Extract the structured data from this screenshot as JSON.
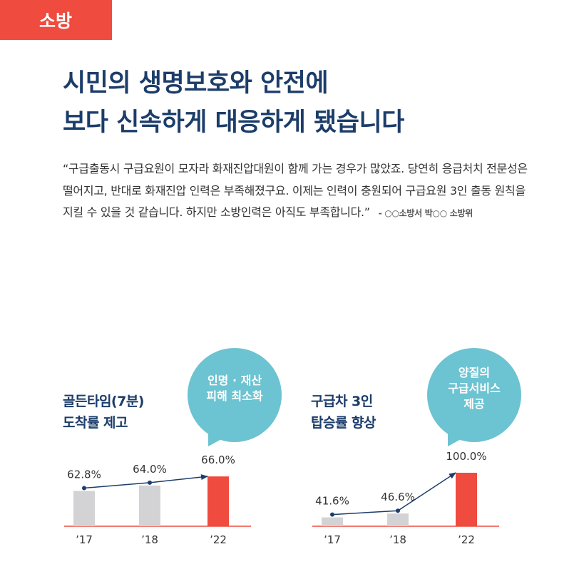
{
  "section_tag": "소방",
  "headline": {
    "line1": "시민의 생명보호와 안전에",
    "line2": "보다 신속하게 대응하게 됐습니다"
  },
  "quote": {
    "text": "“구급출동시 구급요원이 모자라 화재진압대원이 함께 가는 경우가 많았죠. 당연히 응급처치 전문성은 떨어지고, 반대로 화재진압 인력은 부족해졌구요. 이제는 인력이 충원되어 구급요원 3인 출동 원칙을 지킬 수 있을 것 같습니다. 하지만 소방인력은 아직도 부족합니다.”",
    "source": "- ○○소방서 박○○ 소방위"
  },
  "colors": {
    "accent": "#ef4b3e",
    "navy": "#1c3d6a",
    "bar_grey": "#d3d3d5",
    "bubble": "#6cc3d1"
  },
  "charts": [
    {
      "title_line1": "골든타임(7분)",
      "title_line2": "도착률 제고",
      "bubble_line1": "인명 · 재산",
      "bubble_line2": "피해 최소화",
      "bubble_line3": ""
    },
    {
      "title_line1": "구급차 3인",
      "title_line2": "탑승률 향상",
      "bubble_line1": "양질의",
      "bubble_line2": "구급서비스",
      "bubble_line3": "제공"
    }
  ],
  "chart_data": [
    {
      "type": "bar",
      "categories": [
        "’17",
        "’18",
        "’22"
      ],
      "values": [
        62.8,
        64.0,
        66.0
      ],
      "labels": [
        "62.8%",
        "64.0%",
        "66.0%"
      ],
      "highlight_index": 2
    },
    {
      "type": "bar",
      "categories": [
        "’17",
        "’18",
        "’22"
      ],
      "values": [
        41.6,
        46.6,
        100.0
      ],
      "labels": [
        "41.6%",
        "46.6%",
        "100.0%"
      ],
      "highlight_index": 2
    }
  ]
}
